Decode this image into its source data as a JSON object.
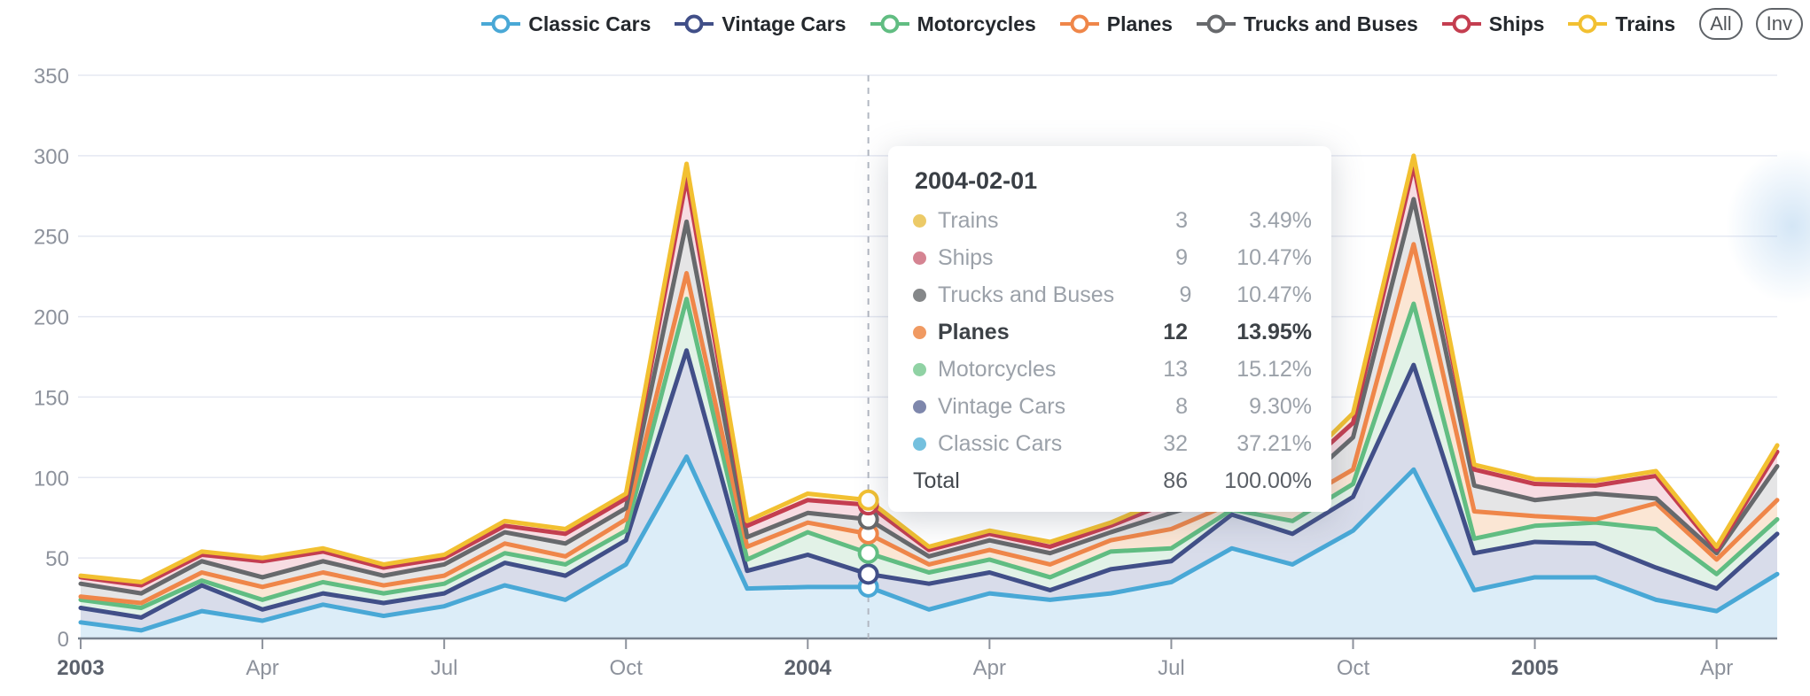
{
  "legend": {
    "buttons": [
      {
        "label": "All"
      },
      {
        "label": "Inv"
      }
    ]
  },
  "tooltip": {
    "date": "2004-02-01",
    "month_index": 13,
    "rows": [
      {
        "name": "Trains",
        "value": "3",
        "percent": "3.49%",
        "color": "#ecca67"
      },
      {
        "name": "Ships",
        "value": "9",
        "percent": "10.47%",
        "color": "#d58492"
      },
      {
        "name": "Trucks and Buses",
        "value": "9",
        "percent": "10.47%",
        "color": "#858789"
      },
      {
        "name": "Planes",
        "value": "12",
        "percent": "13.95%",
        "color": "#f09a62",
        "bold": true
      },
      {
        "name": "Motorcycles",
        "value": "13",
        "percent": "15.12%",
        "color": "#90d2a4"
      },
      {
        "name": "Vintage Cars",
        "value": "8",
        "percent": "9.30%",
        "color": "#7e87ac"
      },
      {
        "name": "Classic Cars",
        "value": "32",
        "percent": "37.21%",
        "color": "#74c0de"
      },
      {
        "name": "Total",
        "value": "86",
        "percent": "100.00%"
      }
    ]
  },
  "chart_data": {
    "type": "area",
    "stacked": true,
    "grid": true,
    "legend_position": "top-right",
    "ylim": [
      0,
      350
    ],
    "yticks": [
      0,
      50,
      100,
      150,
      200,
      250,
      300,
      350
    ],
    "months": [
      "2003-01",
      "2003-02",
      "2003-03",
      "2003-04",
      "2003-05",
      "2003-06",
      "2003-07",
      "2003-08",
      "2003-09",
      "2003-10",
      "2003-11",
      "2003-12",
      "2004-01",
      "2004-02",
      "2004-03",
      "2004-04",
      "2004-05",
      "2004-06",
      "2004-07",
      "2004-08",
      "2004-09",
      "2004-10",
      "2004-11",
      "2004-12",
      "2005-01",
      "2005-02",
      "2005-03",
      "2005-04",
      "2005-05"
    ],
    "xticks": [
      {
        "index": 0,
        "label": "2003",
        "bold": true
      },
      {
        "index": 3,
        "label": "Apr",
        "bold": false
      },
      {
        "index": 6,
        "label": "Jul",
        "bold": false
      },
      {
        "index": 9,
        "label": "Oct",
        "bold": false
      },
      {
        "index": 12,
        "label": "2004",
        "bold": true
      },
      {
        "index": 15,
        "label": "Apr",
        "bold": false
      },
      {
        "index": 18,
        "label": "Jul",
        "bold": false
      },
      {
        "index": 21,
        "label": "Oct",
        "bold": false
      },
      {
        "index": 24,
        "label": "2005",
        "bold": true
      },
      {
        "index": 27,
        "label": "Apr",
        "bold": false
      }
    ],
    "series": [
      {
        "name": "Classic Cars",
        "color": "#49a8d6",
        "fill": "#dcedf8",
        "values": [
          10,
          5,
          17,
          11,
          21,
          14,
          20,
          33,
          24,
          46,
          113,
          31,
          32,
          32,
          18,
          28,
          24,
          28,
          35,
          56,
          46,
          67,
          105,
          30,
          38,
          38,
          24,
          17,
          40
        ]
      },
      {
        "name": "Vintage Cars",
        "color": "#414f88",
        "fill": "#d8dcea",
        "values": [
          9,
          8,
          16,
          7,
          7,
          8,
          8,
          14,
          15,
          15,
          66,
          11,
          20,
          8,
          16,
          13,
          6,
          15,
          13,
          21,
          19,
          21,
          65,
          23,
          22,
          21,
          20,
          14,
          25
        ]
      },
      {
        "name": "Motorcycles",
        "color": "#61bd82",
        "fill": "#e2f2e7",
        "values": [
          5,
          6,
          3,
          6,
          7,
          6,
          6,
          6,
          7,
          6,
          32,
          7,
          14,
          13,
          7,
          8,
          8,
          11,
          8,
          3,
          8,
          8,
          38,
          9,
          10,
          13,
          24,
          9,
          9
        ]
      },
      {
        "name": "Planes",
        "color": "#ef8649",
        "fill": "#fbe6d4",
        "values": [
          2,
          3,
          5,
          8,
          6,
          5,
          5,
          6,
          5,
          7,
          16,
          8,
          6,
          12,
          5,
          6,
          8,
          7,
          12,
          4,
          10,
          9,
          37,
          17,
          6,
          2,
          16,
          9,
          12
        ]
      },
      {
        "name": "Trucks and Buses",
        "color": "#67696c",
        "fill": "#e5e5e6",
        "values": [
          8,
          6,
          7,
          6,
          7,
          6,
          7,
          7,
          8,
          7,
          32,
          6,
          6,
          9,
          5,
          6,
          7,
          5,
          10,
          5,
          8,
          20,
          28,
          16,
          10,
          16,
          3,
          4,
          21
        ]
      },
      {
        "name": "Ships",
        "color": "#c43e50",
        "fill": "#f7dce2",
        "values": [
          4,
          5,
          4,
          10,
          6,
          5,
          4,
          4,
          6,
          6,
          27,
          7,
          8,
          9,
          4,
          4,
          4,
          4,
          7,
          3,
          9,
          9,
          21,
          10,
          10,
          5,
          14,
          2,
          9
        ]
      },
      {
        "name": "Trains",
        "color": "#f2c031",
        "fill": "#fdf3d8",
        "values": [
          1,
          2,
          2,
          2,
          2,
          2,
          2,
          3,
          3,
          3,
          9,
          3,
          4,
          3,
          2,
          2,
          3,
          2,
          3,
          4,
          3,
          6,
          6,
          3,
          3,
          3,
          3,
          2,
          4
        ]
      }
    ]
  }
}
